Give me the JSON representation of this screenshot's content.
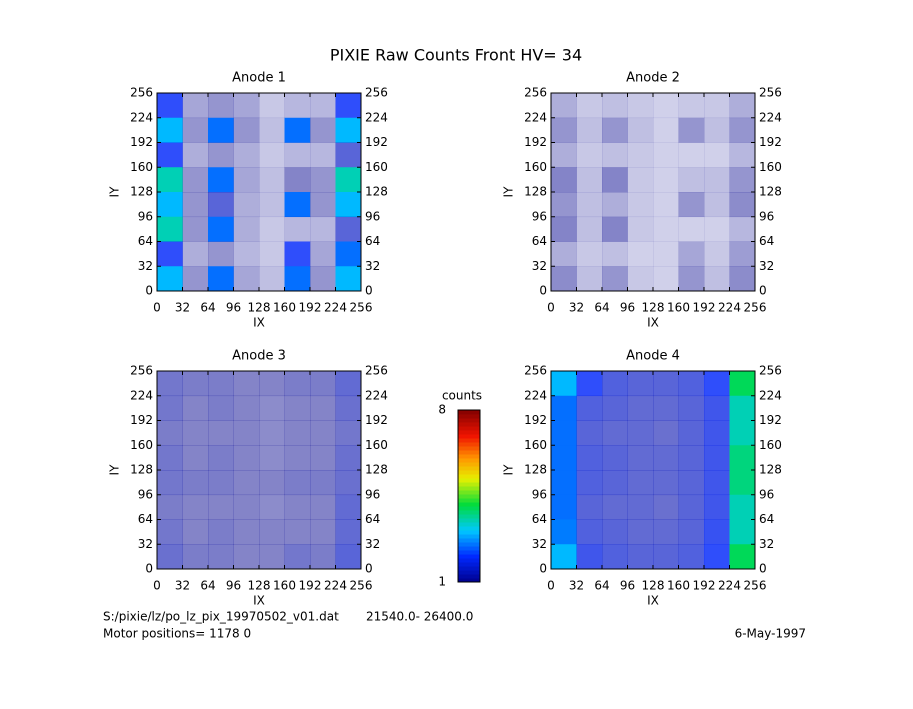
{
  "title": "PIXIE Raw Counts Front HV= 34",
  "chart_data": [
    {
      "type": "heatmap",
      "title": "Anode 1",
      "xlabel": "IX",
      "ylabel": "IY",
      "xlim": [
        0,
        256
      ],
      "ylim": [
        0,
        256
      ],
      "xticks": [
        0,
        32,
        64,
        96,
        128,
        160,
        192,
        224,
        256
      ],
      "yticks": [
        0,
        32,
        64,
        96,
        128,
        160,
        192,
        224,
        256
      ],
      "grid": [
        [
          2,
          0.6,
          0.8,
          0.6,
          0.2,
          0.4,
          0.4,
          2
        ],
        [
          3,
          0.8,
          2.5,
          0.8,
          0.3,
          2.5,
          0.8,
          3
        ],
        [
          2,
          0.5,
          0.8,
          0.5,
          0.2,
          0.4,
          0.4,
          1.5
        ],
        [
          3.5,
          0.8,
          2.5,
          0.6,
          0.3,
          1,
          0.8,
          3.5
        ],
        [
          3,
          0.8,
          1.5,
          0.5,
          0.3,
          2.5,
          0.8,
          3
        ],
        [
          3.5,
          0.8,
          2.5,
          0.5,
          0.2,
          0.4,
          0.4,
          1.5
        ],
        [
          2,
          0.5,
          0.8,
          0.4,
          0.2,
          2,
          0.6,
          2.5
        ],
        [
          3,
          0.8,
          2.5,
          0.6,
          0.3,
          2.5,
          0.8,
          3
        ]
      ]
    },
    {
      "type": "heatmap",
      "title": "Anode 2",
      "xlabel": "IX",
      "ylabel": "IY",
      "xlim": [
        0,
        256
      ],
      "ylim": [
        0,
        256
      ],
      "xticks": [
        0,
        32,
        64,
        96,
        128,
        160,
        192,
        224,
        256
      ],
      "yticks": [
        0,
        32,
        64,
        96,
        128,
        160,
        192,
        224,
        256
      ],
      "grid": [
        [
          0.5,
          0.2,
          0.3,
          0.2,
          0.1,
          0.2,
          0.2,
          0.5
        ],
        [
          0.8,
          0.3,
          0.8,
          0.3,
          0.1,
          0.8,
          0.3,
          0.8
        ],
        [
          0.5,
          0.2,
          0.3,
          0.2,
          0.1,
          0.1,
          0.1,
          0.4
        ],
        [
          1,
          0.3,
          1,
          0.2,
          0.1,
          0.3,
          0.3,
          0.8
        ],
        [
          0.8,
          0.3,
          0.5,
          0.2,
          0.1,
          0.8,
          0.3,
          0.9
        ],
        [
          1,
          0.3,
          1,
          0.2,
          0.1,
          0.1,
          0.1,
          0.4
        ],
        [
          0.5,
          0.2,
          0.3,
          0.1,
          0.1,
          0.6,
          0.2,
          0.7
        ],
        [
          0.9,
          0.3,
          0.8,
          0.2,
          0.1,
          0.8,
          0.3,
          0.9
        ]
      ]
    },
    {
      "type": "heatmap",
      "title": "Anode 3",
      "xlabel": "IX",
      "ylabel": "IY",
      "xlim": [
        0,
        256
      ],
      "ylim": [
        0,
        256
      ],
      "xticks": [
        0,
        32,
        64,
        96,
        128,
        160,
        192,
        224,
        256
      ],
      "yticks": [
        0,
        32,
        64,
        96,
        128,
        160,
        192,
        224,
        256
      ],
      "grid": [
        [
          1.2,
          1.1,
          1.1,
          1,
          1,
          1.1,
          1.1,
          1.4
        ],
        [
          1.2,
          1,
          1.1,
          1,
          0.9,
          1,
          1,
          1.3
        ],
        [
          1.1,
          1,
          1,
          1,
          0.9,
          1,
          1,
          1.2
        ],
        [
          1.2,
          1,
          1.1,
          1,
          0.9,
          1,
          1,
          1.3
        ],
        [
          1.2,
          1.1,
          1.1,
          1,
          1,
          1.1,
          1.1,
          1.3
        ],
        [
          1.1,
          1,
          1,
          1,
          0.9,
          1,
          1,
          1.4
        ],
        [
          1.2,
          1,
          1.1,
          1,
          1,
          1,
          1,
          1.4
        ],
        [
          1.3,
          1.1,
          1.1,
          1,
          1,
          1.2,
          1.1,
          1.5
        ]
      ]
    },
    {
      "type": "heatmap",
      "title": "Anode 4",
      "xlabel": "IX",
      "ylabel": "IY",
      "xlim": [
        0,
        256
      ],
      "ylim": [
        0,
        256
      ],
      "xticks": [
        0,
        32,
        64,
        96,
        128,
        160,
        192,
        224,
        256
      ],
      "yticks": [
        0,
        32,
        64,
        96,
        128,
        160,
        192,
        224,
        256
      ],
      "grid": [
        [
          3,
          2,
          1.6,
          1.5,
          1.5,
          1.6,
          2,
          4
        ],
        [
          2.5,
          1.6,
          1.5,
          1.4,
          1.4,
          1.5,
          1.8,
          3.5
        ],
        [
          2.5,
          1.5,
          1.4,
          1.4,
          1.3,
          1.5,
          1.8,
          3.5
        ],
        [
          2.5,
          1.6,
          1.5,
          1.4,
          1.4,
          1.5,
          1.8,
          3.8
        ],
        [
          2.5,
          1.6,
          1.5,
          1.4,
          1.4,
          1.5,
          1.8,
          3.8
        ],
        [
          2.5,
          1.5,
          1.4,
          1.4,
          1.3,
          1.5,
          1.8,
          3.5
        ],
        [
          2.6,
          1.6,
          1.5,
          1.4,
          1.4,
          1.5,
          1.9,
          3.5
        ],
        [
          3,
          1.8,
          1.6,
          1.5,
          1.5,
          1.6,
          2,
          4
        ]
      ]
    }
  ],
  "colorbar": {
    "label": "counts",
    "colormap": "rainbow",
    "lim": [
      1,
      8
    ],
    "ticks": [
      1,
      8
    ]
  },
  "footer": {
    "file": "S:/pixie/lz/po_lz_pix_19970502_v01.dat",
    "range": "21540.0- 26400.0",
    "motor": "Motor positions= 1178 0",
    "date": "6-May-1997"
  }
}
